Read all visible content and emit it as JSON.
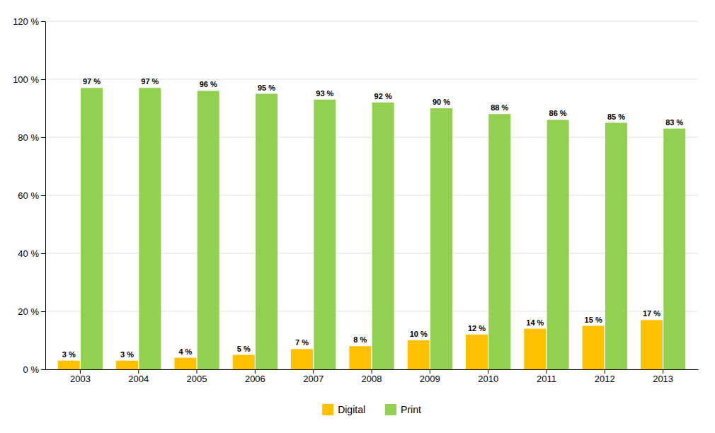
{
  "chart_data": {
    "type": "bar",
    "categories": [
      "2003",
      "2004",
      "2005",
      "2006",
      "2007",
      "2008",
      "2009",
      "2010",
      "2011",
      "2012",
      "2013"
    ],
    "series": [
      {
        "name": "Digital",
        "color": "#FFC000",
        "values": [
          3,
          3,
          4,
          5,
          7,
          8,
          10,
          12,
          14,
          15,
          17
        ],
        "value_labels": [
          "3 %",
          "3 %",
          "4 %",
          "5 %",
          "7 %",
          "8 %",
          "10 %",
          "12 %",
          "14 %",
          "15 %",
          "17 %"
        ]
      },
      {
        "name": "Print",
        "color": "#92D050",
        "values": [
          97,
          97,
          96,
          95,
          93,
          92,
          90,
          88,
          86,
          85,
          83
        ],
        "value_labels": [
          "97 %",
          "97 %",
          "96 %",
          "95 %",
          "93 %",
          "92 %",
          "90 %",
          "88 %",
          "86 %",
          "85 %",
          "83 %"
        ]
      }
    ],
    "ylim": [
      0,
      120
    ],
    "yticks": [
      {
        "value": 0,
        "label": "0 %"
      },
      {
        "value": 20,
        "label": "20 %"
      },
      {
        "value": 40,
        "label": "40 %"
      },
      {
        "value": 60,
        "label": "60 %"
      },
      {
        "value": 80,
        "label": "80 %"
      },
      {
        "value": 100,
        "label": "100 %"
      },
      {
        "value": 120,
        "label": "120 %"
      }
    ],
    "grid": true,
    "legend": "bottom",
    "data_labels": true
  }
}
